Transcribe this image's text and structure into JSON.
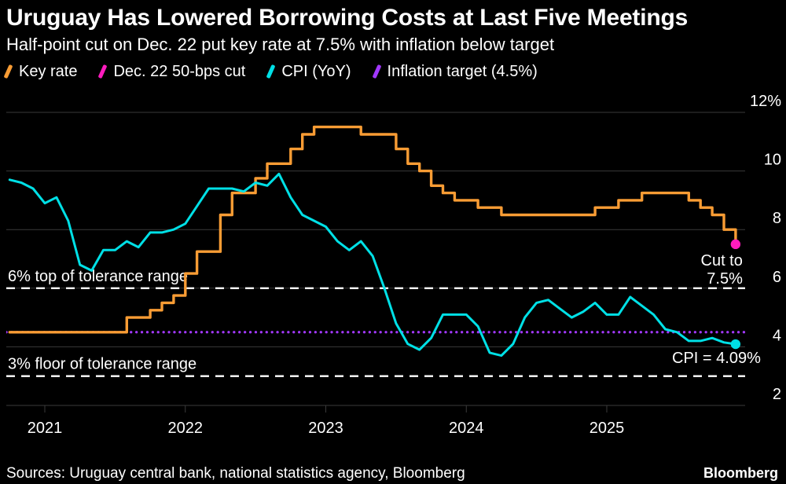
{
  "chart_data": {
    "type": "line",
    "title": "Uruguay Has Lowered Borrowing Costs at Last Five Meetings",
    "subtitle": "Half-point cut on Dec. 22 put key rate at 7.5% with inflation below target",
    "x_axis": {
      "range": [
        2020.72,
        2026.05
      ],
      "ticks": [
        {
          "value": 2021,
          "label": "2021"
        },
        {
          "value": 2022,
          "label": "2022"
        },
        {
          "value": 2023,
          "label": "2023"
        },
        {
          "value": 2024,
          "label": "2024"
        },
        {
          "value": 2025,
          "label": "2025"
        }
      ]
    },
    "y_axis": {
      "unit": "%",
      "position": "right",
      "range": [
        1.3,
        12.6
      ],
      "grid": true,
      "ticks": [
        {
          "value": 12,
          "label": "12%"
        },
        {
          "value": 10,
          "label": "10"
        },
        {
          "value": 8,
          "label": "8"
        },
        {
          "value": 6,
          "label": "6"
        },
        {
          "value": 4,
          "label": "4"
        },
        {
          "value": 2,
          "label": "2"
        }
      ]
    },
    "series": [
      {
        "name": "Key rate",
        "color": "#F89C34",
        "line_style": "step",
        "start_year": 2020.75,
        "points_per_year": 12,
        "values": [
          4.5,
          4.5,
          4.5,
          4.5,
          4.5,
          4.5,
          4.5,
          4.5,
          4.5,
          4.5,
          5.0,
          5.0,
          5.25,
          5.5,
          5.75,
          6.5,
          7.25,
          7.25,
          8.5,
          9.25,
          9.25,
          9.75,
          10.25,
          10.25,
          10.75,
          11.25,
          11.5,
          11.5,
          11.5,
          11.5,
          11.25,
          11.25,
          11.25,
          10.75,
          10.25,
          10.0,
          9.5,
          9.25,
          9.0,
          9.0,
          8.75,
          8.75,
          8.5,
          8.5,
          8.5,
          8.5,
          8.5,
          8.5,
          8.5,
          8.5,
          8.75,
          8.75,
          9.0,
          9.0,
          9.25,
          9.25,
          9.25,
          9.25,
          9.0,
          8.75,
          8.5,
          8.0,
          7.5
        ]
      },
      {
        "name": "CPI (YoY)",
        "color": "#00E0E6",
        "line_style": "line",
        "start_year": 2020.75,
        "points_per_year": 12,
        "values": [
          9.7,
          9.6,
          9.4,
          8.9,
          9.1,
          8.3,
          6.8,
          6.6,
          7.3,
          7.3,
          7.6,
          7.4,
          7.9,
          7.9,
          8.0,
          8.2,
          8.8,
          9.4,
          9.4,
          9.4,
          9.3,
          9.6,
          9.5,
          9.9,
          9.1,
          8.5,
          8.3,
          8.1,
          7.6,
          7.3,
          7.6,
          7.1,
          6.0,
          4.8,
          4.1,
          3.9,
          4.3,
          5.1,
          5.1,
          5.1,
          4.7,
          3.8,
          3.7,
          4.1,
          5.0,
          5.5,
          5.6,
          5.3,
          5.0,
          5.2,
          5.5,
          5.1,
          5.1,
          5.7,
          5.4,
          5.1,
          4.6,
          4.5,
          4.2,
          4.2,
          4.3,
          4.15,
          4.09
        ]
      }
    ],
    "reference_lines": [
      {
        "id": "tolerance-top",
        "label": "6% top of tolerance range",
        "value": 6,
        "style": "dashed",
        "color": "#FFFFFF"
      },
      {
        "id": "tolerance-floor",
        "label": "3% floor of tolerance range",
        "value": 3,
        "style": "dashed",
        "color": "#FFFFFF"
      },
      {
        "id": "inflation-target",
        "label": "",
        "value": 4.5,
        "style": "dotted",
        "color": "#A238FF"
      }
    ],
    "annotations": [
      {
        "id": "rate-cut",
        "lines": [
          "Cut to",
          "7.5%"
        ],
        "t": 2025.9167,
        "value": 7.5,
        "color": "#FF1CBE",
        "anchor": "end",
        "dx": 9,
        "dy": [
          27,
          50
        ]
      },
      {
        "id": "cpi-latest",
        "lines": [
          "CPI = 4.09%"
        ],
        "t": 2025.9167,
        "value": 4.09,
        "color": "#00E0E6",
        "anchor": "end",
        "dx": 32,
        "dy": [
          24
        ]
      }
    ]
  },
  "legend": [
    {
      "label": "Key rate",
      "color": "#F89C34"
    },
    {
      "label": "Dec. 22 50-bps cut",
      "color": "#FF1CBE"
    },
    {
      "label": "CPI (YoY)",
      "color": "#00E0E6"
    },
    {
      "label": "Inflation target (4.5%)",
      "color": "#A238FF"
    }
  ],
  "footer": {
    "sources": "Sources: Uruguay central bank, national statistics agency, Bloomberg",
    "brand": "Bloomberg"
  }
}
